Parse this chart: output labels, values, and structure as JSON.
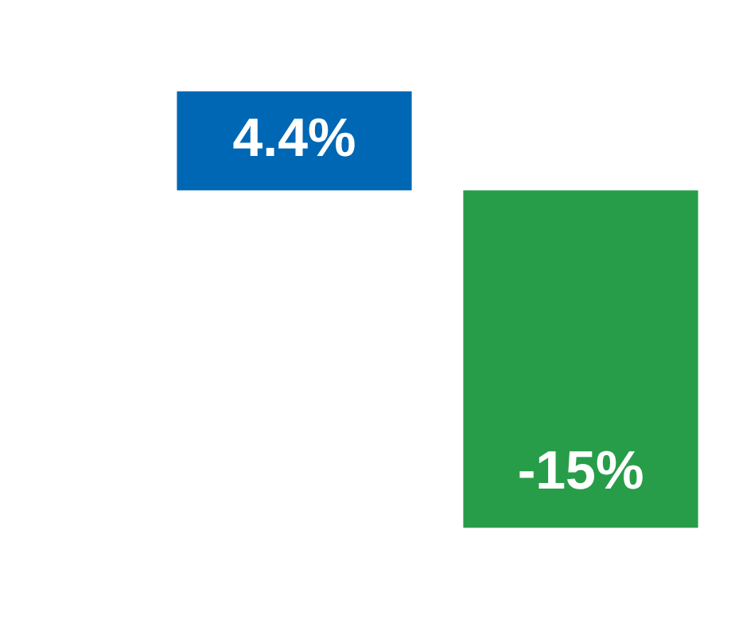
{
  "chart_data": {
    "type": "bar",
    "categories": [
      null
    ],
    "series": [
      {
        "color": "#0067b4",
        "values": [
          4.4
        ],
        "value_labels": [
          "4.4%"
        ]
      },
      {
        "color": "#289d49",
        "values": [
          -15
        ],
        "value_labels": [
          "-15%"
        ]
      }
    ],
    "legend": false,
    "grid": false,
    "tick_labels": false
  }
}
